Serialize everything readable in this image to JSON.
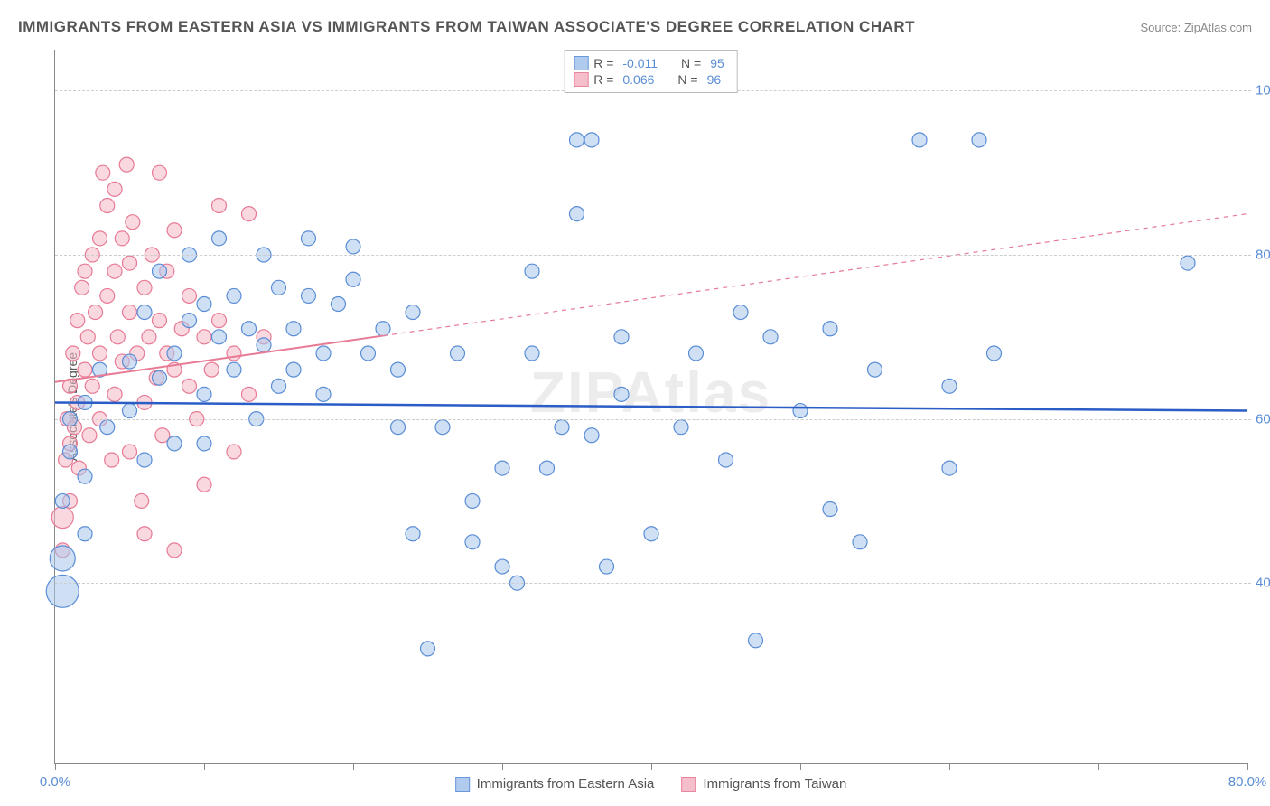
{
  "title": "IMMIGRANTS FROM EASTERN ASIA VS IMMIGRANTS FROM TAIWAN ASSOCIATE'S DEGREE CORRELATION CHART",
  "source": "Source: ZipAtlas.com",
  "watermark": "ZIPAtlas",
  "y_axis_label": "Associate's Degree",
  "chart": {
    "type": "scatter",
    "xlim": [
      0,
      80
    ],
    "ylim": [
      18,
      105
    ],
    "x_ticks": [
      0,
      10,
      20,
      30,
      40,
      50,
      60,
      70,
      80
    ],
    "y_grid": [
      40,
      60,
      80,
      100
    ],
    "y_grid_labels": [
      "40.0%",
      "60.0%",
      "80.0%",
      "100.0%"
    ],
    "x_tick_labels": {
      "left": "0.0%",
      "right": "80.0%"
    },
    "background_color": "#ffffff",
    "grid_color": "#cccccc"
  },
  "series": {
    "blue": {
      "label": "Immigrants from Eastern Asia",
      "fill": "#a8c6ed",
      "stroke": "#5a8dd6",
      "fill_opacity": 0.55,
      "marker_r": 8,
      "R": "-0.011",
      "N": "95",
      "trend": {
        "y1": 62,
        "y2": 61,
        "color": "#2a5dc6",
        "width": 2.5,
        "dash": "none"
      }
    },
    "pink": {
      "label": "Immigrants from Taiwan",
      "fill": "#f5b8c6",
      "stroke": "#e77a94",
      "fill_opacity": 0.55,
      "marker_r": 8,
      "R": "0.066",
      "N": "96",
      "trend": {
        "y1": 64.5,
        "y2": 85,
        "color": "#e77a94",
        "width": 1.2,
        "dash": "5,5",
        "solid_until_x": 22
      }
    }
  },
  "points_blue": [
    [
      0.5,
      39,
      18
    ],
    [
      0.5,
      43,
      14
    ],
    [
      0.5,
      50
    ],
    [
      1,
      56
    ],
    [
      1,
      60
    ],
    [
      2,
      62
    ],
    [
      2,
      53
    ],
    [
      2,
      46
    ],
    [
      3,
      66
    ],
    [
      3.5,
      59
    ],
    [
      5,
      61
    ],
    [
      5,
      67
    ],
    [
      6,
      73
    ],
    [
      6,
      55
    ],
    [
      7,
      65
    ],
    [
      7,
      78
    ],
    [
      8,
      68
    ],
    [
      8,
      57
    ],
    [
      9,
      80
    ],
    [
      9,
      72
    ],
    [
      10,
      74
    ],
    [
      10,
      63
    ],
    [
      10,
      57
    ],
    [
      11,
      82
    ],
    [
      11,
      70
    ],
    [
      12,
      66
    ],
    [
      12,
      75
    ],
    [
      13,
      71
    ],
    [
      13.5,
      60
    ],
    [
      14,
      80
    ],
    [
      14,
      69
    ],
    [
      15,
      76
    ],
    [
      15,
      64
    ],
    [
      16,
      66
    ],
    [
      16,
      71
    ],
    [
      17,
      82
    ],
    [
      17,
      75
    ],
    [
      18,
      68
    ],
    [
      18,
      63
    ],
    [
      19,
      74
    ],
    [
      20,
      77
    ],
    [
      20,
      81
    ],
    [
      21,
      68
    ],
    [
      22,
      71
    ],
    [
      23,
      66
    ],
    [
      23,
      59
    ],
    [
      24,
      46
    ],
    [
      24,
      73
    ],
    [
      25,
      32
    ],
    [
      26,
      59
    ],
    [
      27,
      68
    ],
    [
      28,
      45
    ],
    [
      28,
      50
    ],
    [
      30,
      54
    ],
    [
      30,
      42
    ],
    [
      31,
      40
    ],
    [
      32,
      68
    ],
    [
      32,
      78
    ],
    [
      33,
      54
    ],
    [
      34,
      59
    ],
    [
      35,
      94
    ],
    [
      35,
      85
    ],
    [
      36,
      58
    ],
    [
      36,
      94
    ],
    [
      37,
      42
    ],
    [
      38,
      70
    ],
    [
      38,
      63
    ],
    [
      40,
      46
    ],
    [
      42,
      59
    ],
    [
      43,
      68
    ],
    [
      45,
      55
    ],
    [
      46,
      73
    ],
    [
      47,
      33
    ],
    [
      48,
      70
    ],
    [
      50,
      61
    ],
    [
      52,
      49
    ],
    [
      52,
      71
    ],
    [
      54,
      45
    ],
    [
      55,
      66
    ],
    [
      58,
      94
    ],
    [
      60,
      54
    ],
    [
      60,
      64
    ],
    [
      62,
      94
    ],
    [
      63,
      68
    ],
    [
      76,
      79
    ]
  ],
  "points_pink": [
    [
      0.5,
      44
    ],
    [
      0.5,
      48,
      12
    ],
    [
      0.7,
      55
    ],
    [
      0.8,
      60
    ],
    [
      1,
      50
    ],
    [
      1,
      57
    ],
    [
      1,
      64
    ],
    [
      1.2,
      68
    ],
    [
      1.3,
      59
    ],
    [
      1.5,
      72
    ],
    [
      1.5,
      62
    ],
    [
      1.6,
      54
    ],
    [
      1.8,
      76
    ],
    [
      2,
      66
    ],
    [
      2,
      78
    ],
    [
      2.2,
      70
    ],
    [
      2.3,
      58
    ],
    [
      2.5,
      80
    ],
    [
      2.5,
      64
    ],
    [
      2.7,
      73
    ],
    [
      3,
      82
    ],
    [
      3,
      68
    ],
    [
      3,
      60
    ],
    [
      3.2,
      90
    ],
    [
      3.5,
      75
    ],
    [
      3.5,
      86
    ],
    [
      3.8,
      55
    ],
    [
      4,
      78
    ],
    [
      4,
      63
    ],
    [
      4,
      88
    ],
    [
      4.2,
      70
    ],
    [
      4.5,
      82
    ],
    [
      4.5,
      67
    ],
    [
      4.8,
      91
    ],
    [
      5,
      73
    ],
    [
      5,
      79
    ],
    [
      5,
      56
    ],
    [
      5.2,
      84
    ],
    [
      5.5,
      68
    ],
    [
      5.8,
      50
    ],
    [
      6,
      76
    ],
    [
      6,
      62
    ],
    [
      6,
      46
    ],
    [
      6.3,
      70
    ],
    [
      6.5,
      80
    ],
    [
      6.8,
      65
    ],
    [
      7,
      72
    ],
    [
      7,
      90
    ],
    [
      7.2,
      58
    ],
    [
      7.5,
      68
    ],
    [
      7.5,
      78
    ],
    [
      8,
      44
    ],
    [
      8,
      66
    ],
    [
      8,
      83
    ],
    [
      8.5,
      71
    ],
    [
      9,
      64
    ],
    [
      9,
      75
    ],
    [
      9.5,
      60
    ],
    [
      10,
      70
    ],
    [
      10,
      52
    ],
    [
      10.5,
      66
    ],
    [
      11,
      86
    ],
    [
      11,
      72
    ],
    [
      12,
      68
    ],
    [
      12,
      56
    ],
    [
      13,
      85
    ],
    [
      13,
      63
    ],
    [
      14,
      70
    ]
  ],
  "legend_top_rows": [
    {
      "series": "blue",
      "Rlbl": "R =",
      "Nlbl": "N ="
    },
    {
      "series": "pink",
      "Rlbl": "R =",
      "Nlbl": "N ="
    }
  ]
}
